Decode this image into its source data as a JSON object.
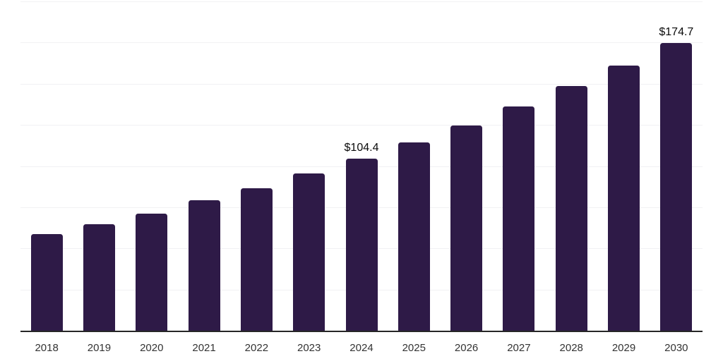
{
  "chart_data": {
    "type": "bar",
    "title": "",
    "xlabel": "",
    "ylabel": "",
    "categories": [
      "2018",
      "2019",
      "2020",
      "2021",
      "2022",
      "2023",
      "2024",
      "2025",
      "2026",
      "2027",
      "2028",
      "2029",
      "2030"
    ],
    "values": [
      58.5,
      64.5,
      71.3,
      79.1,
      86.7,
      95.7,
      104.4,
      114.5,
      124.7,
      136.0,
      148.5,
      161.0,
      174.7
    ],
    "data_labels": [
      {
        "category": "2024",
        "text": "$104.4"
      },
      {
        "category": "2030",
        "text": "$174.7"
      }
    ],
    "ylim": [
      0,
      200
    ],
    "gridline_step": 25,
    "grid": true,
    "legend": false,
    "y_axis_tick_labels_visible": false,
    "unit_prefix": "$"
  },
  "colors": {
    "bar": "#2e1a47",
    "gridline": "#f1f1f3",
    "axis_line": "#262626",
    "tick_label": "#333333",
    "data_label": "#0b0b0b",
    "background": "#ffffff"
  }
}
